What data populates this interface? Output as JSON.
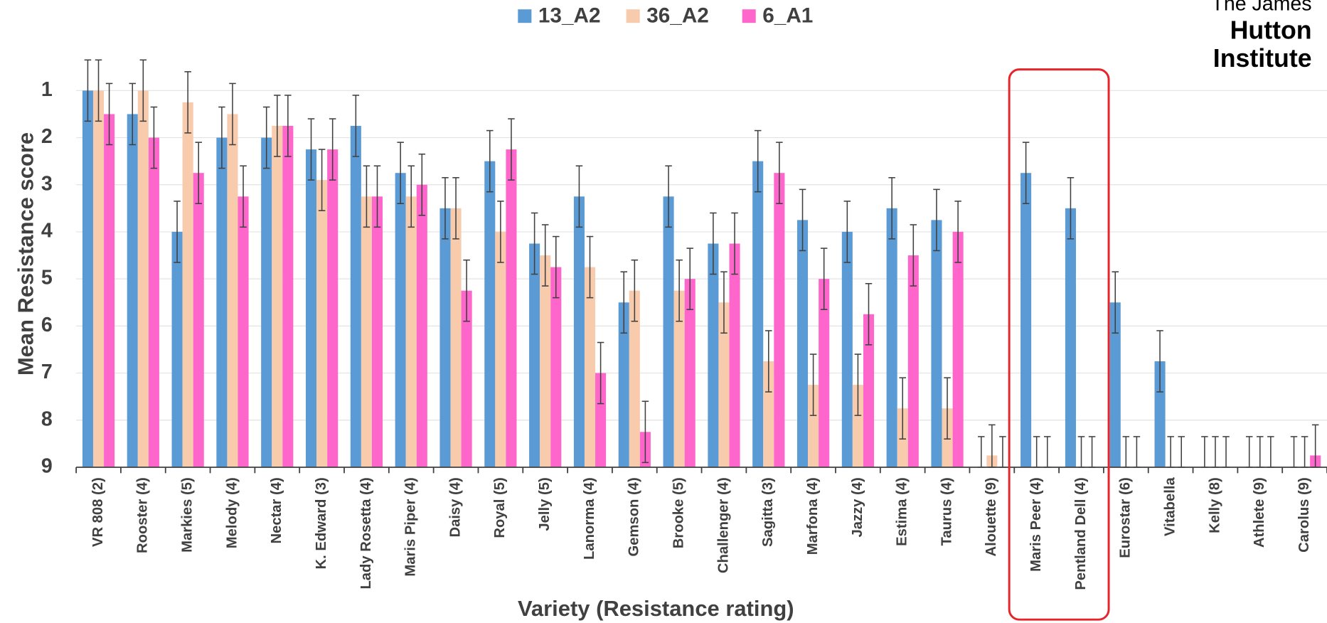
{
  "chart_data": {
    "type": "bar",
    "y_label": "Mean Resistance score",
    "x_label": "Variety (Resistance rating)",
    "logo": [
      "The James",
      "Hutton",
      "Institute"
    ],
    "categories": [
      "VR 808 (2)",
      "Rooster (4)",
      "Markies (5)",
      "Melody (4)",
      "Nectar (4)",
      "K. Edward (3)",
      "Lady Rosetta (4)",
      "Maris Piper (4)",
      "Daisy (4)",
      "Royal (5)",
      "Jelly (5)",
      "Lanorma (4)",
      "Gemson (4)",
      "Brooke (5)",
      "Challenger (4)",
      "Sagitta (3)",
      "Marfona (4)",
      "Jazzy (4)",
      "Estima (4)",
      "Taurus (4)",
      "Alouette (9)",
      "Maris Peer (4)",
      "Pentland Dell (4)",
      "Eurostar (6)",
      "Vitabella",
      "Kelly (8)",
      "Athlete (9)",
      "Carolus (9)"
    ],
    "series": [
      {
        "name": "13_A2",
        "color": "#5b9bd5",
        "values": [
          1,
          1.5,
          4,
          2,
          2,
          2.25,
          1.75,
          2.75,
          3.5,
          2.5,
          4.25,
          3.25,
          5.5,
          3.25,
          4.25,
          2.5,
          3.75,
          4,
          3.5,
          3.75,
          9,
          2.75,
          3.5,
          5.5,
          6.75,
          9,
          9,
          9
        ],
        "errors": [
          0.65,
          0.65,
          0.65,
          0.65,
          0.65,
          0.65,
          0.65,
          0.65,
          0.65,
          0.65,
          0.65,
          0.65,
          0.65,
          0.65,
          0.65,
          0.65,
          0.65,
          0.65,
          0.65,
          0.65,
          0.65,
          0.65,
          0.65,
          0.65,
          0.65,
          0.65,
          0.65,
          0.65
        ]
      },
      {
        "name": "36_A2",
        "color": "#f8cbad",
        "values": [
          1,
          1,
          1.25,
          1.5,
          1.75,
          2.9,
          3.25,
          3.25,
          3.5,
          4,
          4.5,
          4.75,
          5.25,
          5.25,
          5.5,
          6.75,
          7.25,
          7.25,
          7.75,
          7.75,
          8.75,
          9,
          9,
          9,
          9,
          9,
          9,
          9
        ],
        "errors": [
          0.65,
          0.65,
          0.65,
          0.65,
          0.65,
          0.65,
          0.65,
          0.65,
          0.65,
          0.65,
          0.65,
          0.65,
          0.65,
          0.65,
          0.65,
          0.65,
          0.65,
          0.65,
          0.65,
          0.65,
          0.65,
          0.65,
          0.65,
          0.65,
          0.65,
          0.65,
          0.65,
          0.65
        ]
      },
      {
        "name": "6_A1",
        "color": "#ff66cc",
        "values": [
          1.5,
          2,
          2.75,
          3.25,
          1.75,
          2.25,
          3.25,
          3,
          5.25,
          2.25,
          4.75,
          7,
          8.25,
          5,
          4.25,
          2.75,
          5,
          5.75,
          4.5,
          4,
          9,
          9,
          9,
          9,
          9,
          9,
          9,
          8.75
        ],
        "errors": [
          0.65,
          0.65,
          0.65,
          0.65,
          0.65,
          0.65,
          0.65,
          0.65,
          0.65,
          0.65,
          0.65,
          0.65,
          0.65,
          0.65,
          0.65,
          0.65,
          0.65,
          0.65,
          0.65,
          0.65,
          0.65,
          0.65,
          0.65,
          0.65,
          0.65,
          0.65,
          0.65,
          0.65
        ]
      }
    ],
    "ylim": [
      9,
      0.3
    ],
    "yticks": [
      1,
      2,
      3,
      4,
      5,
      6,
      7,
      8,
      9
    ],
    "grid": true
  }
}
